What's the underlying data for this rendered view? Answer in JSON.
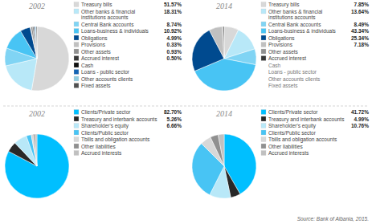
{
  "chart_data": [
    {
      "type": "pie",
      "title": "2002",
      "categories": [
        "Treasury bills",
        "Other banks & financial institutions accounts",
        "Central Bank accounts",
        "Loans-business & individuals",
        "Obligations",
        "Provisions",
        "Other assets",
        "Accrued interest",
        "Cash",
        "Loans - public sector",
        "Other accounts clients",
        "Fixed assets"
      ],
      "values": [
        51.57,
        18.31,
        8.74,
        10.92,
        4.99,
        0.33,
        0.93,
        0.5,
        0.4,
        0.4,
        0.4,
        0.4
      ],
      "value_labels": [
        "51.57%",
        "18.31%",
        "8.74%",
        "10.92%",
        "4.99%",
        "0.33%",
        "0.93%",
        "0.50%",
        null,
        null,
        null,
        null
      ],
      "colors": [
        "#d8d8d8",
        "#b8e8f8",
        "#80d4f4",
        "#48c4f4",
        "#004a8f",
        "#c0c0c0",
        "#909090",
        "#383838",
        "#101010",
        "#1464b4",
        "#90cce0",
        "#505050"
      ],
      "data_labels": true
    },
    {
      "type": "pie",
      "title": "2014",
      "categories": [
        "Treasury bills",
        "Other banks & financial institutions accounts",
        "Central Bank accounts",
        "Loans-business & individuals",
        "Obligations",
        "Provisions",
        "Other assets",
        "Accrued interest"
      ],
      "values": [
        7.85,
        13.64,
        8.49,
        43.34,
        25.34,
        7.18,
        0.5,
        0.5
      ],
      "value_labels": [
        "7.85%",
        "13.64%",
        "8.49%",
        "43.34%",
        "25.34%",
        "7.18%",
        null,
        null
      ],
      "colors": [
        "#d8d8d8",
        "#b8e8f8",
        "#80d4f4",
        "#48c4f4",
        "#004a8f",
        "#c0c0c0",
        "#909090",
        "#383838"
      ],
      "annotations": [
        "Cash",
        "Loans - public sector",
        "Other accounts clients",
        "Fixed assets"
      ],
      "data_labels": true
    },
    {
      "type": "pie",
      "title": "2002",
      "categories": [
        "Clients/Private sector",
        "Treasury and interbank accounts",
        "Shareholder's equity",
        "Clients/Public sector",
        "Tbills and obligation accounts",
        "Other liabilities",
        "Accrued interests"
      ],
      "values": [
        82.7,
        5.26,
        6.66,
        2.5,
        1.0,
        0.89,
        0.99
      ],
      "value_labels": [
        "82.70%",
        "5.26%",
        "6.66%",
        null,
        null,
        null,
        null
      ],
      "colors": [
        "#00bfff",
        "#282828",
        "#b8e8f8",
        "#48c4f4",
        "#d8d8d8",
        "#909090",
        "#c0c0c0"
      ],
      "data_labels": true
    },
    {
      "type": "pie",
      "title": "2014",
      "categories": [
        "Clients/Private sector",
        "Treasury and interbank accounts",
        "Shareholder's equity",
        "Clients/Public sector",
        "Tbills and obligation accounts",
        "Other liabilities",
        "Accrued interests"
      ],
      "values": [
        41.72,
        4.99,
        10.76,
        30.0,
        5.5,
        4.0,
        3.03
      ],
      "value_labels": [
        "41.72%",
        "4.99%",
        "10.76%",
        null,
        null,
        null,
        null
      ],
      "colors": [
        "#00bfff",
        "#282828",
        "#b8e8f8",
        "#48c4f4",
        "#d8d8d8",
        "#909090",
        "#c0c0c0"
      ],
      "data_labels": true
    }
  ],
  "source": "Source: Bank of Albania, 2015."
}
